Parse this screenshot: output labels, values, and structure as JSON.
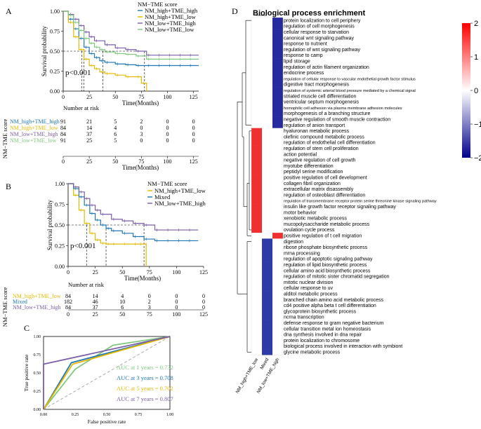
{
  "panels": {
    "A": {
      "letter": "A",
      "legend_title": "NM−TME score",
      "legend_items": [
        "NM_high+TME_high",
        "NM_high+TME_low",
        "NM_low+TME_high",
        "NM_low+TME_low"
      ],
      "colors": [
        "#1f77b4",
        "#e6b800",
        "#7b5ea7",
        "#7fc97f"
      ],
      "ylabel": "Survival probability",
      "xlabel": "Time(Months)",
      "pvalue": "p<0.001",
      "xticks": [
        "0",
        "25",
        "50",
        "75",
        "100",
        "125"
      ],
      "yticks": [
        "0.00",
        "0.25",
        "0.50",
        "0.75",
        "1.00"
      ],
      "risk_title": "Number at risk",
      "risk_ylabel": "NM−TME score",
      "risk_xlabel": "Time(Months)",
      "risk_rows": [
        {
          "label": "NM_high+TME_high",
          "values": [
            "91",
            "21",
            "5",
            "2",
            "0",
            "0"
          ]
        },
        {
          "label": "NM_high+TME_low",
          "values": [
            "84",
            "14",
            "4",
            "0",
            "0",
            "0"
          ]
        },
        {
          "label": "NM_low+TME_high",
          "values": [
            "84",
            "37",
            "6",
            "3",
            "0",
            "0"
          ]
        },
        {
          "label": "NM_low+TME_low",
          "values": [
            "91",
            "25",
            "5",
            "0",
            "0",
            "0"
          ]
        }
      ]
    },
    "B": {
      "letter": "B",
      "legend_title": "NM−TME score",
      "legend_items": [
        "NM_high+TME_low",
        "Mixed",
        "NM_low+TME_high"
      ],
      "colors": [
        "#e6b800",
        "#1f77b4",
        "#7b5ea7"
      ],
      "ylabel": "Survival probability",
      "xlabel": "Time(Months)",
      "pvalue": "p<0.001",
      "xticks": [
        "0",
        "25",
        "50",
        "75",
        "100",
        "125"
      ],
      "yticks": [
        "0.00",
        "0.25",
        "0.50",
        "0.75",
        "1.00"
      ],
      "risk_title": "Number at risk",
      "risk_ylabel": "NM−TME score",
      "risk_rows": [
        {
          "label": "NM_high+TME_low",
          "values": [
            "84",
            "14",
            "4",
            "0",
            "0",
            "0"
          ]
        },
        {
          "label": "Mixed",
          "values": [
            "182",
            "46",
            "10",
            "2",
            "0",
            "0"
          ]
        },
        {
          "label": "NM_low+TME_high",
          "values": [
            "84",
            "37",
            "6",
            "3",
            "0",
            "0"
          ]
        }
      ]
    },
    "C": {
      "letter": "C",
      "ylabel": "True positive rate",
      "xlabel": "False positive rate",
      "xticks": [
        "0.00",
        "0.25",
        "0.50",
        "0.75",
        "1.00"
      ],
      "yticks": [
        "0.00",
        "0.25",
        "0.50",
        "0.75",
        "1.00"
      ],
      "auc": [
        {
          "text": "AUC at 1 years = 0.732",
          "color": "#7fc97f"
        },
        {
          "text": "AUC at 3 years = 0.708",
          "color": "#1f77b4"
        },
        {
          "text": "AUC at 5 years = 0.702",
          "color": "#e6b800"
        },
        {
          "text": "AUC at 7 years = 0.807",
          "color": "#7b5ea7"
        }
      ]
    },
    "D": {
      "letter": "D",
      "title": "Biological process enrichment",
      "columns": [
        "NM_high+TME_low",
        "Mixed",
        "NM_low+TME_high"
      ],
      "scale_ticks": [
        "2",
        "1",
        "0",
        "−1",
        "−2"
      ],
      "terms": [
        "protein localization to cell periphery",
        "regulation of cell morphogenesis",
        "cellular response to starvation",
        "canonical wnt signaling pathway",
        "response to nutrient",
        "regulation of wnt signaling pathway",
        "response to camp",
        "lipid storage",
        "regulation of actin filament organization",
        "endocrine process",
        "regulation of cellular response to vascular endothelial growth factor stimulus",
        "digestive tract morphogenesis",
        "regulation of systemic arterial blood pressure mediated by a chemical signal",
        "striated muscle cell differentiation",
        "ventricular septum morphogenesis",
        "homophilic cell adhesion via plasma membrane adhesion molecules",
        "morphogenesis of a branching structure",
        "negative regulation of smooth muscle contraction",
        "regulation of anion transport",
        "hyaluronan metabolic process",
        "olefinic compound metabolic process",
        "regulation of endothelial cell differentiation",
        "regulation of stem cell proliferation",
        "action potential",
        "negative regulation of cell growth",
        "myotube differentiation",
        "peptidyl serine modification",
        "positive regulation of cell development",
        "collagen fibril organization",
        "extracellular matrix disassembly",
        "regulation of osteoblast differentiation",
        "regulation of transmembrane receptor protein serine threonine kinase signaling pathway",
        "insulin like growth factor receptor signaling pathway",
        "motor behavior",
        "xenobiotic metabolic process",
        "mucopolysaccharide metabolic process",
        "ovulation cycle process",
        "positive regulation of t cell migration",
        "digestion",
        "ribose phosphate biosynthetic process",
        "mrna processing",
        "regulation of apoptotic signaling pathway",
        "regulation of lipid biosynthetic process",
        "cellular amino acid biosynthetic process",
        "regulation of mitotic sister chromatid segregation",
        "mitotic nuclear division",
        "cellular response to uv",
        "alditol metabolic process",
        "branched chain amino acid metabolic process",
        "cd4 positive alpha beta t cell differentiation",
        "glycoprotein biosynthetic process",
        "ncrna transcription",
        "defense response to gram negative bacterium",
        "cellular transition metal ion homeostasis",
        "dna synthesis involved in dna repair",
        "protein localization to chromosome",
        "biological process involved in interaction with symbiont",
        "glycine metabolic process"
      ]
    }
  },
  "chart_data": [
    {
      "type": "line",
      "title": "",
      "xlabel": "Time(Months)",
      "ylabel": "Survival probability",
      "xlim": [
        0,
        130
      ],
      "ylim": [
        0,
        1
      ],
      "series": [
        {
          "name": "NM_high+TME_high",
          "x": [
            0,
            5,
            10,
            15,
            20,
            25,
            30,
            35,
            40,
            50,
            60,
            70,
            80,
            90,
            100,
            110,
            120,
            130
          ],
          "y": [
            1.0,
            0.9,
            0.78,
            0.66,
            0.55,
            0.47,
            0.42,
            0.38,
            0.36,
            0.34,
            0.33,
            0.32,
            0.32,
            0.32,
            0.32,
            0.32,
            0.32,
            0.32
          ]
        },
        {
          "name": "NM_high+TME_low",
          "x": [
            0,
            5,
            10,
            15,
            20,
            25,
            30,
            35,
            40,
            50,
            60,
            70,
            75,
            80
          ],
          "y": [
            1.0,
            0.86,
            0.68,
            0.52,
            0.4,
            0.32,
            0.28,
            0.24,
            0.22,
            0.2,
            0.18,
            0.18,
            0.1,
            0.0
          ]
        },
        {
          "name": "NM_low+TME_high",
          "x": [
            0,
            5,
            10,
            15,
            20,
            25,
            30,
            40,
            50,
            60,
            70,
            80,
            90,
            100,
            110,
            120,
            130
          ],
          "y": [
            1.0,
            0.96,
            0.9,
            0.82,
            0.74,
            0.68,
            0.63,
            0.58,
            0.54,
            0.52,
            0.5,
            0.45,
            0.45,
            0.45,
            0.45,
            0.45,
            0.45
          ]
        },
        {
          "name": "NM_low+TME_low",
          "x": [
            0,
            5,
            10,
            15,
            20,
            25,
            30,
            35,
            40,
            50,
            60,
            70,
            80,
            90,
            100,
            110,
            120,
            130
          ],
          "y": [
            1.0,
            0.95,
            0.86,
            0.76,
            0.66,
            0.6,
            0.55,
            0.52,
            0.49,
            0.47,
            0.46,
            0.44,
            0.4,
            0.4,
            0.4,
            0.4,
            0.4,
            0.4
          ]
        }
      ]
    },
    {
      "type": "line",
      "title": "",
      "xlabel": "Time(Months)",
      "ylabel": "Survival probability",
      "xlim": [
        0,
        125
      ],
      "ylim": [
        0,
        1
      ],
      "series": [
        {
          "name": "NM_high+TME_low",
          "x": [
            0,
            5,
            10,
            15,
            20,
            25,
            30,
            35,
            40,
            50,
            60,
            65,
            70,
            72
          ],
          "y": [
            1.0,
            0.86,
            0.68,
            0.52,
            0.4,
            0.32,
            0.28,
            0.27,
            0.27,
            0.27,
            0.27,
            0.27,
            0.27,
            0.0
          ]
        },
        {
          "name": "Mixed",
          "x": [
            0,
            5,
            10,
            15,
            20,
            25,
            30,
            35,
            40,
            50,
            60,
            70,
            80,
            90,
            100,
            110,
            120
          ],
          "y": [
            1.0,
            0.94,
            0.84,
            0.74,
            0.64,
            0.56,
            0.5,
            0.46,
            0.43,
            0.4,
            0.36,
            0.33,
            0.31,
            0.31,
            0.31,
            0.31,
            0.31
          ]
        },
        {
          "name": "NM_low+TME_high",
          "x": [
            0,
            5,
            10,
            15,
            20,
            25,
            30,
            40,
            50,
            60,
            70,
            80,
            90,
            100,
            110,
            120
          ],
          "y": [
            1.0,
            0.96,
            0.9,
            0.82,
            0.74,
            0.68,
            0.63,
            0.57,
            0.55,
            0.52,
            0.5,
            0.44,
            0.44,
            0.44,
            0.44,
            0.44
          ]
        }
      ]
    },
    {
      "type": "line",
      "title": "",
      "xlabel": "False positive rate",
      "ylabel": "True positive rate",
      "xlim": [
        0,
        1
      ],
      "ylim": [
        0,
        1
      ],
      "series": [
        {
          "name": "AUC at 1 years = 0.732",
          "x": [
            0,
            0.25,
            0.55,
            1
          ],
          "y": [
            0,
            0.55,
            0.88,
            1
          ]
        },
        {
          "name": "AUC at 3 years = 0.708",
          "x": [
            0,
            0.22,
            1
          ],
          "y": [
            0,
            0.64,
            1
          ]
        },
        {
          "name": "AUC at 5 years = 0.702",
          "x": [
            0,
            0.23,
            1
          ],
          "y": [
            0,
            0.62,
            1
          ]
        },
        {
          "name": "AUC at 7 years = 0.807",
          "x": [
            0,
            0,
            1
          ],
          "y": [
            0,
            0.62,
            1
          ]
        }
      ]
    },
    {
      "type": "heatmap",
      "title": "Biological process enrichment",
      "columns": [
        "NM_high+TME_low",
        "Mixed",
        "NM_low+TME_high"
      ],
      "rows_group_high_tme": {
        "count": 19,
        "values": [
          0,
          0,
          -1.6
        ]
      },
      "rows_group_hightme_low": {
        "count": 18,
        "values": [
          1.6,
          0,
          0
        ]
      },
      "rows_group_t_cell": {
        "count": 1,
        "values": [
          0,
          0,
          1.8
        ]
      },
      "rows_group_mixed": {
        "count": 20,
        "values": [
          0,
          -1.5,
          0
        ]
      },
      "scale": [
        -2,
        2
      ]
    }
  ]
}
